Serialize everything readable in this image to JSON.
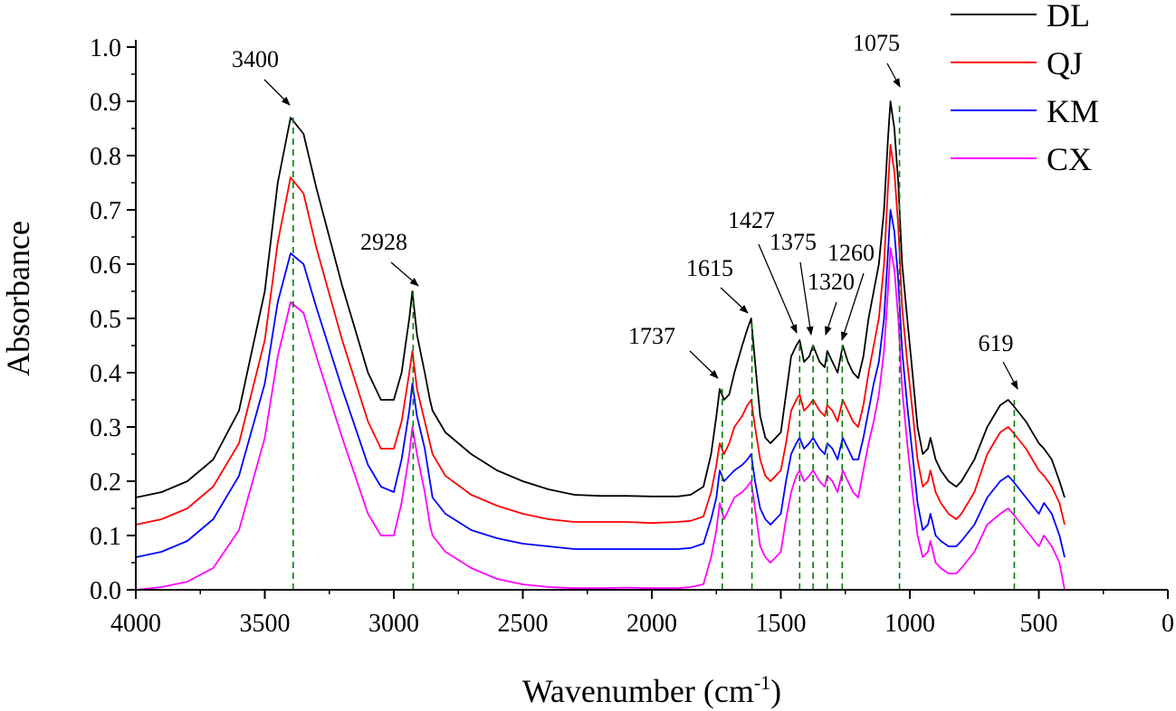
{
  "chart_data": {
    "type": "line",
    "title": "",
    "xlabel_main": "Wavenumber (cm",
    "xlabel_sup": "-1",
    "xlabel_close": ")",
    "ylabel": "Absorbance",
    "xlim": [
      4000,
      0
    ],
    "ylim": [
      0.0,
      1.0
    ],
    "x_ticks": [
      "4000",
      "3500",
      "3000",
      "2500",
      "2000",
      "1500",
      "1000",
      "500",
      "0"
    ],
    "x_tick_values": [
      4000,
      3500,
      3000,
      2500,
      2000,
      1500,
      1000,
      500,
      0
    ],
    "y_ticks": [
      "0.0",
      "0.1",
      "0.2",
      "0.3",
      "0.4",
      "0.5",
      "0.6",
      "0.7",
      "0.8",
      "0.9",
      "1.0"
    ],
    "y_tick_values": [
      0.0,
      0.1,
      0.2,
      0.3,
      0.4,
      0.5,
      0.6,
      0.7,
      0.8,
      0.9,
      1.0
    ],
    "legend_position": "top-right",
    "series": [
      {
        "name": "DL",
        "color": "#000000",
        "x": [
          4000,
          3900,
          3800,
          3700,
          3600,
          3500,
          3450,
          3400,
          3350,
          3300,
          3200,
          3100,
          3050,
          3000,
          2970,
          2940,
          2928,
          2910,
          2880,
          2860,
          2850,
          2800,
          2700,
          2600,
          2500,
          2400,
          2300,
          2200,
          2100,
          2000,
          1900,
          1850,
          1800,
          1770,
          1750,
          1737,
          1720,
          1700,
          1680,
          1650,
          1630,
          1615,
          1600,
          1580,
          1560,
          1540,
          1520,
          1500,
          1480,
          1460,
          1440,
          1427,
          1410,
          1390,
          1375,
          1350,
          1330,
          1320,
          1300,
          1280,
          1260,
          1240,
          1220,
          1200,
          1180,
          1160,
          1140,
          1120,
          1100,
          1085,
          1075,
          1060,
          1045,
          1030,
          1010,
          990,
          970,
          950,
          930,
          920,
          900,
          880,
          850,
          820,
          800,
          750,
          700,
          650,
          619,
          600,
          550,
          500,
          480,
          450,
          420,
          400
        ],
        "y": [
          0.17,
          0.18,
          0.2,
          0.24,
          0.33,
          0.55,
          0.75,
          0.87,
          0.84,
          0.74,
          0.56,
          0.4,
          0.35,
          0.35,
          0.4,
          0.5,
          0.55,
          0.47,
          0.4,
          0.35,
          0.33,
          0.29,
          0.25,
          0.22,
          0.2,
          0.185,
          0.175,
          0.173,
          0.173,
          0.172,
          0.172,
          0.175,
          0.19,
          0.25,
          0.32,
          0.37,
          0.35,
          0.36,
          0.4,
          0.45,
          0.48,
          0.5,
          0.42,
          0.32,
          0.28,
          0.27,
          0.28,
          0.29,
          0.36,
          0.43,
          0.45,
          0.46,
          0.42,
          0.43,
          0.45,
          0.42,
          0.41,
          0.44,
          0.42,
          0.4,
          0.45,
          0.42,
          0.4,
          0.39,
          0.43,
          0.5,
          0.55,
          0.6,
          0.7,
          0.83,
          0.9,
          0.85,
          0.75,
          0.6,
          0.5,
          0.4,
          0.3,
          0.25,
          0.26,
          0.28,
          0.24,
          0.22,
          0.2,
          0.19,
          0.2,
          0.24,
          0.3,
          0.34,
          0.35,
          0.34,
          0.31,
          0.27,
          0.26,
          0.24,
          0.2,
          0.17
        ]
      },
      {
        "name": "QJ",
        "color": "#ff0000",
        "x": [
          4000,
          3900,
          3800,
          3700,
          3600,
          3500,
          3450,
          3400,
          3350,
          3300,
          3200,
          3100,
          3050,
          3000,
          2970,
          2940,
          2928,
          2910,
          2880,
          2860,
          2850,
          2800,
          2700,
          2600,
          2500,
          2400,
          2300,
          2200,
          2100,
          2000,
          1900,
          1850,
          1800,
          1770,
          1750,
          1737,
          1720,
          1700,
          1680,
          1650,
          1630,
          1615,
          1600,
          1580,
          1560,
          1540,
          1520,
          1500,
          1480,
          1460,
          1440,
          1427,
          1410,
          1390,
          1375,
          1350,
          1330,
          1320,
          1300,
          1280,
          1260,
          1240,
          1220,
          1200,
          1180,
          1160,
          1140,
          1120,
          1100,
          1085,
          1075,
          1060,
          1045,
          1030,
          1010,
          990,
          970,
          950,
          930,
          920,
          900,
          880,
          850,
          820,
          800,
          750,
          700,
          650,
          619,
          600,
          550,
          500,
          480,
          450,
          420,
          400
        ],
        "y": [
          0.12,
          0.13,
          0.15,
          0.19,
          0.27,
          0.46,
          0.64,
          0.76,
          0.73,
          0.63,
          0.46,
          0.31,
          0.26,
          0.26,
          0.31,
          0.4,
          0.44,
          0.37,
          0.31,
          0.27,
          0.25,
          0.21,
          0.175,
          0.155,
          0.14,
          0.13,
          0.125,
          0.125,
          0.125,
          0.123,
          0.125,
          0.127,
          0.135,
          0.18,
          0.23,
          0.27,
          0.25,
          0.27,
          0.3,
          0.32,
          0.34,
          0.35,
          0.3,
          0.24,
          0.21,
          0.2,
          0.21,
          0.22,
          0.27,
          0.33,
          0.35,
          0.36,
          0.33,
          0.34,
          0.35,
          0.33,
          0.32,
          0.34,
          0.33,
          0.31,
          0.35,
          0.33,
          0.31,
          0.3,
          0.34,
          0.4,
          0.45,
          0.5,
          0.6,
          0.74,
          0.82,
          0.77,
          0.67,
          0.52,
          0.42,
          0.33,
          0.24,
          0.19,
          0.2,
          0.22,
          0.18,
          0.16,
          0.14,
          0.13,
          0.14,
          0.18,
          0.25,
          0.29,
          0.3,
          0.29,
          0.26,
          0.22,
          0.21,
          0.19,
          0.16,
          0.12
        ]
      },
      {
        "name": "KM",
        "color": "#0000ff",
        "x": [
          4000,
          3900,
          3800,
          3700,
          3600,
          3500,
          3450,
          3400,
          3350,
          3300,
          3200,
          3100,
          3050,
          3000,
          2970,
          2940,
          2928,
          2910,
          2880,
          2860,
          2850,
          2800,
          2700,
          2600,
          2500,
          2400,
          2300,
          2200,
          2100,
          2000,
          1900,
          1850,
          1800,
          1770,
          1750,
          1737,
          1720,
          1700,
          1680,
          1650,
          1630,
          1615,
          1600,
          1580,
          1560,
          1540,
          1520,
          1500,
          1480,
          1460,
          1440,
          1427,
          1410,
          1390,
          1375,
          1350,
          1330,
          1320,
          1300,
          1280,
          1260,
          1240,
          1220,
          1200,
          1180,
          1160,
          1140,
          1120,
          1100,
          1085,
          1075,
          1060,
          1045,
          1030,
          1010,
          990,
          970,
          950,
          930,
          920,
          900,
          880,
          850,
          820,
          800,
          750,
          700,
          650,
          619,
          600,
          550,
          500,
          480,
          450,
          420,
          400
        ],
        "y": [
          0.06,
          0.07,
          0.09,
          0.13,
          0.21,
          0.38,
          0.53,
          0.62,
          0.6,
          0.52,
          0.37,
          0.23,
          0.19,
          0.18,
          0.24,
          0.33,
          0.38,
          0.32,
          0.26,
          0.2,
          0.17,
          0.14,
          0.11,
          0.095,
          0.085,
          0.08,
          0.075,
          0.075,
          0.075,
          0.075,
          0.075,
          0.077,
          0.085,
          0.13,
          0.17,
          0.22,
          0.2,
          0.21,
          0.22,
          0.23,
          0.24,
          0.25,
          0.2,
          0.15,
          0.13,
          0.12,
          0.13,
          0.14,
          0.2,
          0.25,
          0.27,
          0.28,
          0.26,
          0.27,
          0.28,
          0.26,
          0.25,
          0.27,
          0.26,
          0.24,
          0.28,
          0.26,
          0.24,
          0.24,
          0.28,
          0.33,
          0.38,
          0.42,
          0.5,
          0.62,
          0.7,
          0.66,
          0.57,
          0.44,
          0.34,
          0.25,
          0.16,
          0.11,
          0.12,
          0.14,
          0.1,
          0.09,
          0.08,
          0.08,
          0.09,
          0.12,
          0.17,
          0.2,
          0.21,
          0.2,
          0.17,
          0.14,
          0.16,
          0.14,
          0.1,
          0.06
        ]
      },
      {
        "name": "CX",
        "color": "#ff00ff",
        "x": [
          4000,
          3900,
          3800,
          3700,
          3600,
          3500,
          3450,
          3400,
          3350,
          3300,
          3200,
          3100,
          3050,
          3000,
          2970,
          2940,
          2928,
          2910,
          2880,
          2860,
          2850,
          2800,
          2700,
          2600,
          2500,
          2400,
          2300,
          2200,
          2100,
          2000,
          1900,
          1850,
          1800,
          1770,
          1750,
          1737,
          1720,
          1700,
          1680,
          1650,
          1630,
          1615,
          1600,
          1580,
          1560,
          1540,
          1520,
          1500,
          1480,
          1460,
          1440,
          1427,
          1410,
          1390,
          1375,
          1350,
          1330,
          1320,
          1300,
          1280,
          1260,
          1240,
          1220,
          1200,
          1180,
          1160,
          1140,
          1120,
          1100,
          1085,
          1075,
          1060,
          1045,
          1030,
          1010,
          990,
          970,
          950,
          930,
          920,
          900,
          880,
          850,
          820,
          800,
          750,
          700,
          650,
          619,
          600,
          550,
          500,
          480,
          450,
          420,
          400
        ],
        "y": [
          0.0,
          0.005,
          0.015,
          0.04,
          0.11,
          0.28,
          0.43,
          0.53,
          0.51,
          0.43,
          0.28,
          0.14,
          0.1,
          0.1,
          0.16,
          0.25,
          0.3,
          0.25,
          0.18,
          0.12,
          0.1,
          0.07,
          0.04,
          0.02,
          0.01,
          0.005,
          0.003,
          0.003,
          0.004,
          0.003,
          0.003,
          0.005,
          0.01,
          0.06,
          0.11,
          0.16,
          0.13,
          0.15,
          0.17,
          0.18,
          0.19,
          0.2,
          0.15,
          0.08,
          0.06,
          0.05,
          0.06,
          0.07,
          0.13,
          0.18,
          0.21,
          0.22,
          0.2,
          0.21,
          0.22,
          0.2,
          0.19,
          0.21,
          0.2,
          0.18,
          0.22,
          0.2,
          0.18,
          0.17,
          0.22,
          0.27,
          0.31,
          0.36,
          0.44,
          0.55,
          0.63,
          0.59,
          0.5,
          0.37,
          0.27,
          0.18,
          0.1,
          0.06,
          0.07,
          0.09,
          0.05,
          0.04,
          0.03,
          0.03,
          0.04,
          0.07,
          0.12,
          0.14,
          0.15,
          0.14,
          0.11,
          0.08,
          0.1,
          0.08,
          0.05,
          0.0
        ]
      }
    ],
    "peaks": [
      {
        "label": "3400",
        "x": 3390,
        "y_start": 0.0,
        "y_end": 0.87
      },
      {
        "label": "2928",
        "x": 2925,
        "y_start": 0.0,
        "y_end": 0.55
      },
      {
        "label": "1737",
        "x": 1727,
        "y_start": 0.0,
        "y_end": 0.37
      },
      {
        "label": "1615",
        "x": 1612,
        "y_start": 0.0,
        "y_end": 0.5
      },
      {
        "label": "1427",
        "x": 1427,
        "y_start": 0.0,
        "y_end": 0.46
      },
      {
        "label": "1375",
        "x": 1375,
        "y_start": 0.0,
        "y_end": 0.45
      },
      {
        "label": "1320",
        "x": 1320,
        "y_start": 0.0,
        "y_end": 0.44
      },
      {
        "label": "1260",
        "x": 1262,
        "y_start": 0.0,
        "y_end": 0.45
      },
      {
        "label": "1075",
        "x": 1040,
        "y_start": 0.0,
        "y_end": 0.9
      },
      {
        "label": "619",
        "x": 595,
        "y_start": 0.0,
        "y_end": 0.35
      }
    ]
  }
}
